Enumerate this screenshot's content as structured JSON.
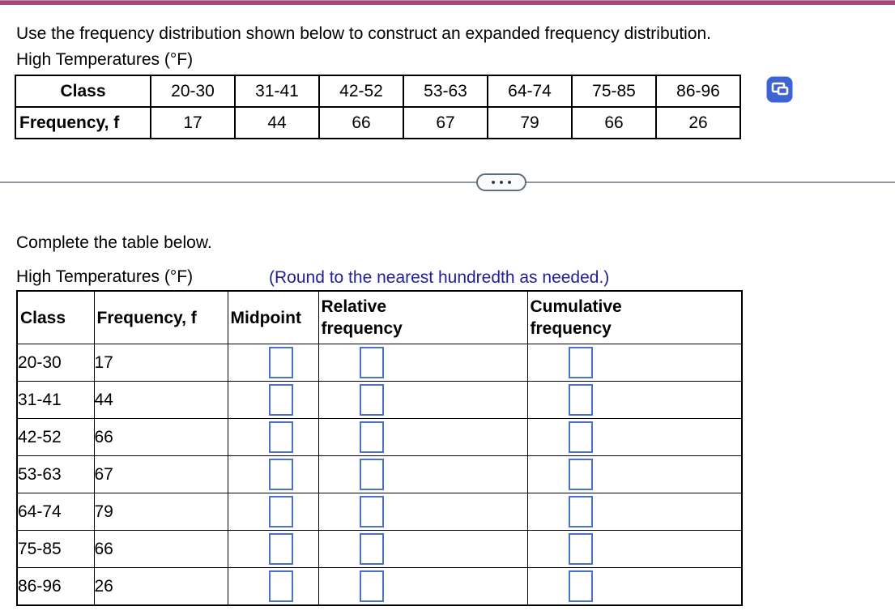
{
  "colors": {
    "top_bar": "#a3487b",
    "answer_box_blue": "#4b72cb",
    "note_blue": "#1f1f96",
    "icon_blue": "#3e63d2",
    "divider_gray": "#8e96a0",
    "table_border": "#000000"
  },
  "icons": {
    "copy_data": "copy-data-icon",
    "more_options": "more-options-icon"
  },
  "question": {
    "prompt": "Use the frequency distribution shown below to construct an expanded frequency distribution.",
    "table_title": "High Temperatures (°F)",
    "given_table": {
      "class_label": "Class",
      "frequency_label": "Frequency, f",
      "classes": [
        "20-30",
        "31-41",
        "42-52",
        "53-63",
        "64-74",
        "75-85",
        "86-96"
      ],
      "frequencies": [
        "17",
        "44",
        "66",
        "67",
        "79",
        "66",
        "26"
      ]
    }
  },
  "answer": {
    "instruction": "Complete the table below.",
    "table_title": "High Temperatures (°F)",
    "rounding_note": "(Round to the nearest hundredth as needed.)",
    "columns": [
      "Class",
      "Frequency, f",
      "Midpoint",
      "Relative\nfrequency",
      "Cumulative\nfrequency"
    ],
    "rows": [
      {
        "class": "20-30",
        "frequency": "17"
      },
      {
        "class": "31-41",
        "frequency": "44"
      },
      {
        "class": "42-52",
        "frequency": "66"
      },
      {
        "class": "53-63",
        "frequency": "67"
      },
      {
        "class": "64-74",
        "frequency": "79"
      },
      {
        "class": "75-85",
        "frequency": "66"
      },
      {
        "class": "86-96",
        "frequency": "26"
      }
    ],
    "input_names": [
      "midpoint-input",
      "relative-frequency-input",
      "cumulative-frequency-input"
    ]
  }
}
